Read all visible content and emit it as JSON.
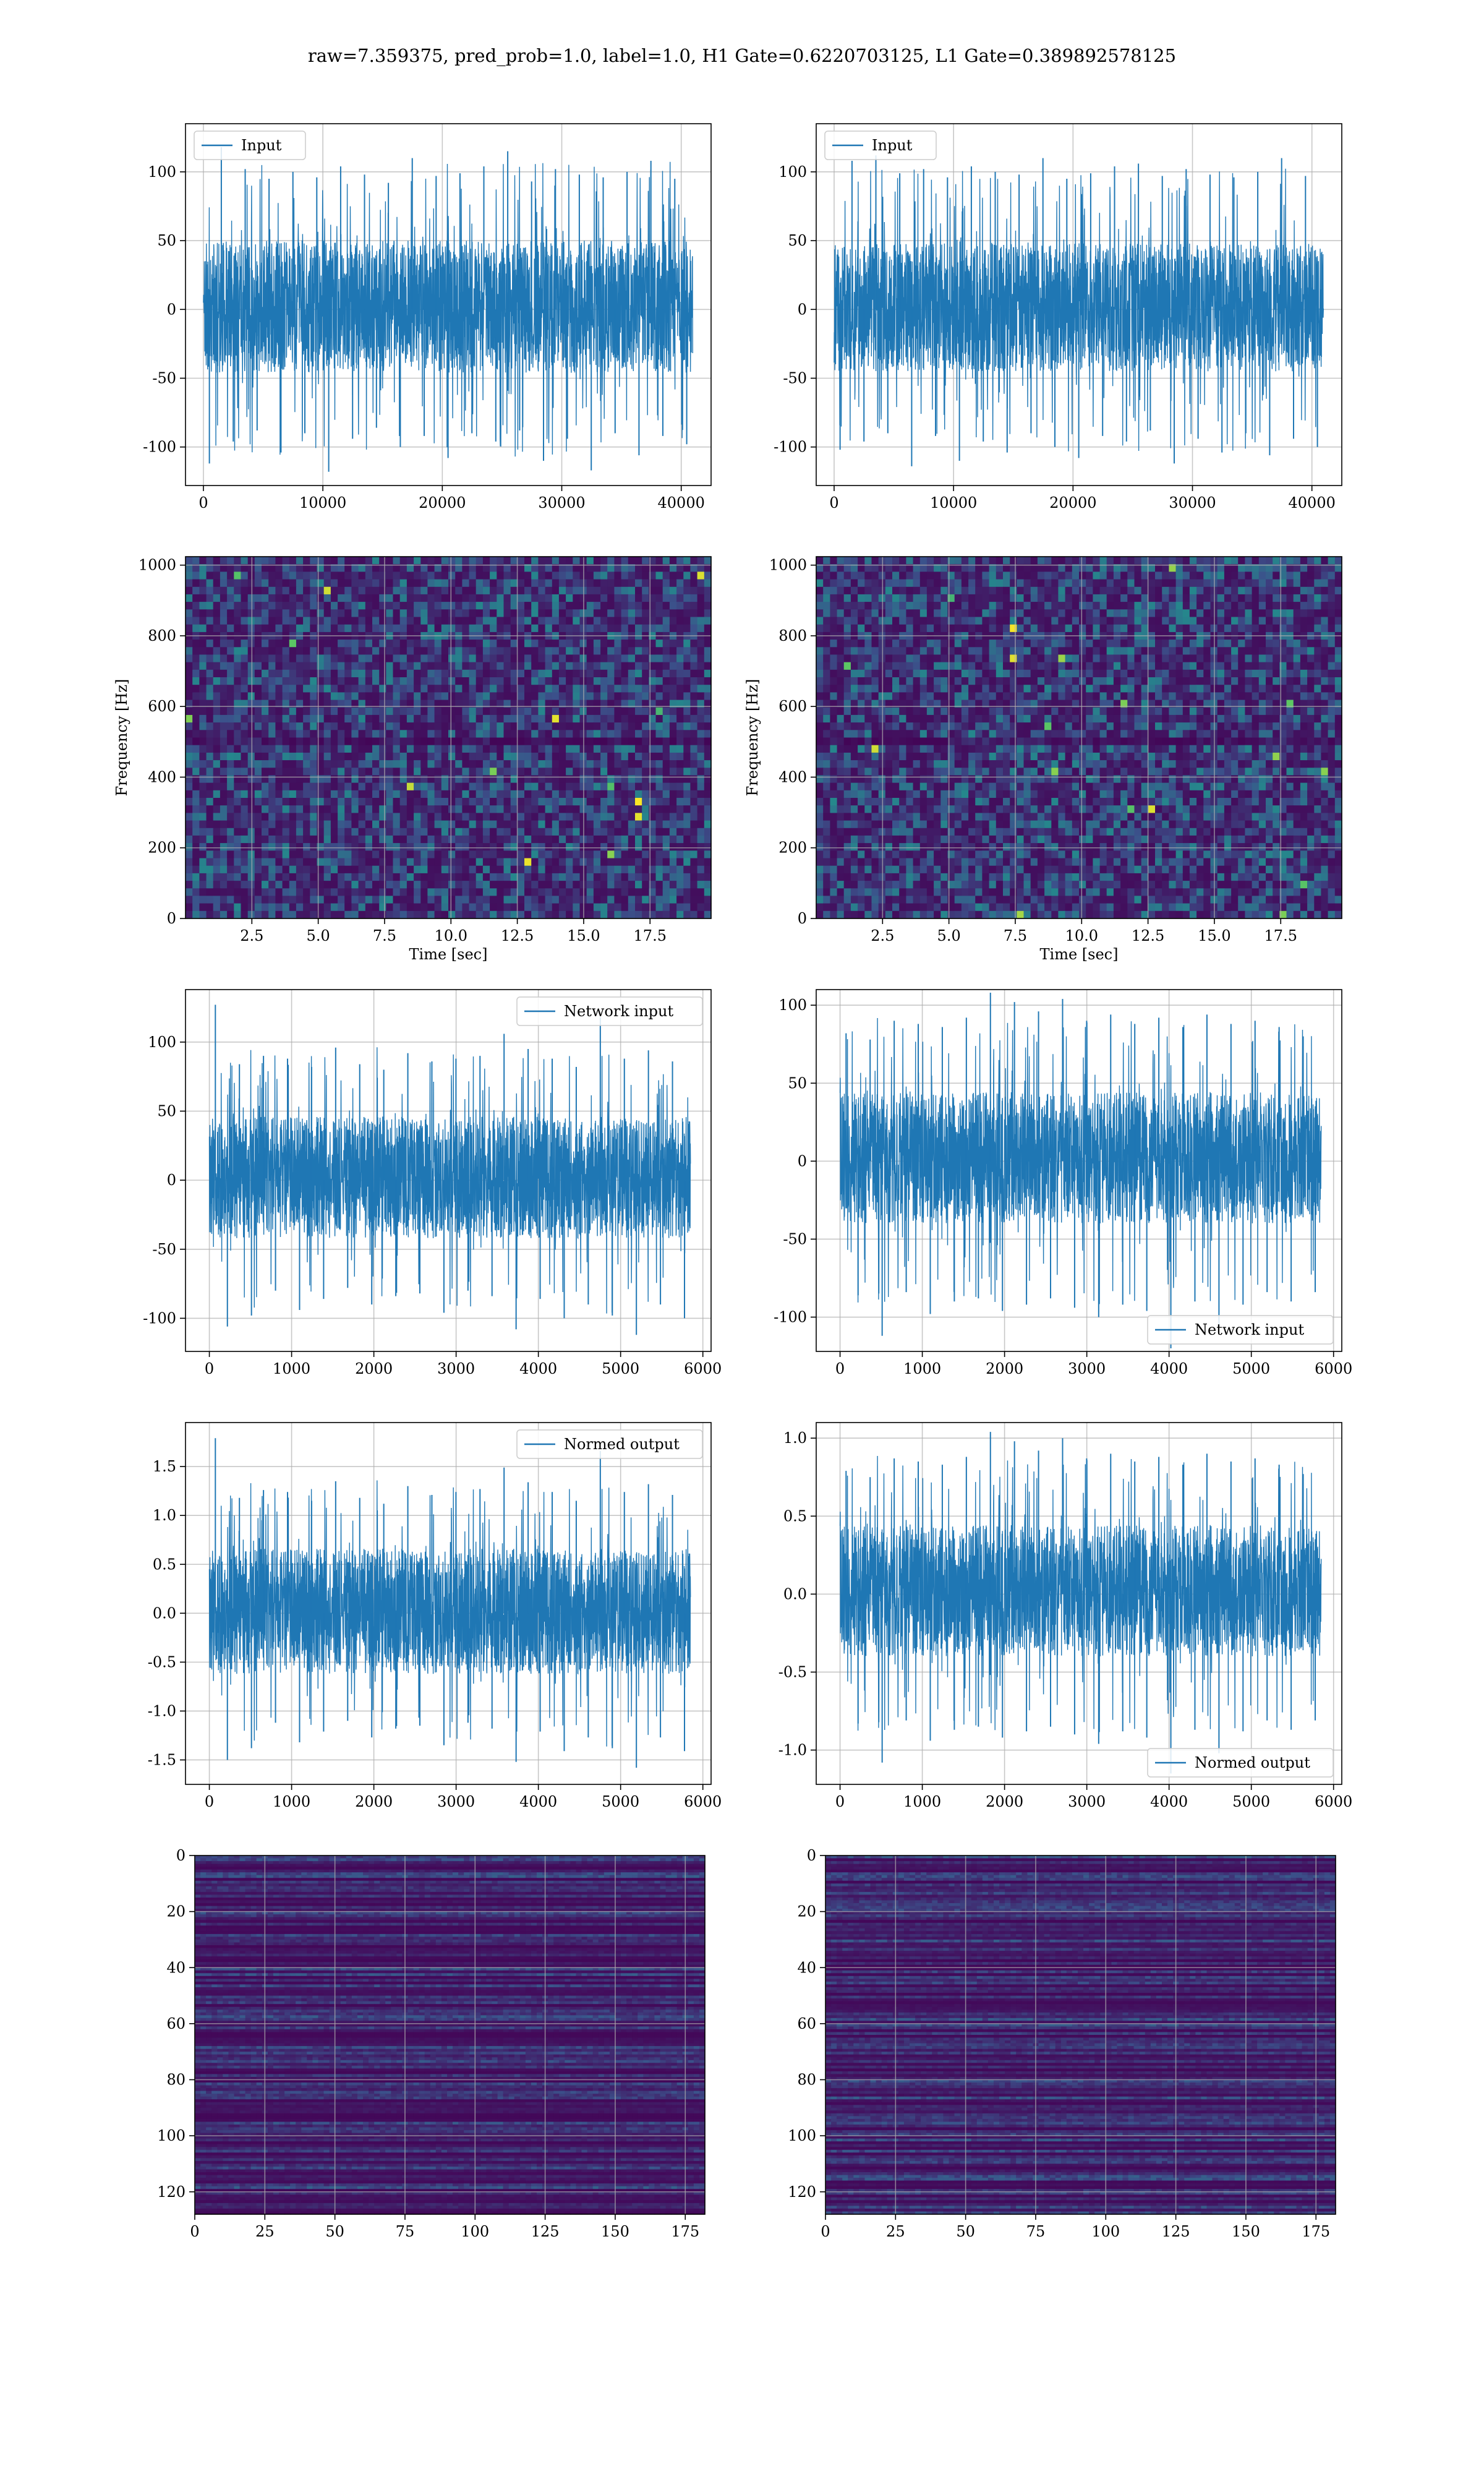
{
  "figure": {
    "title": "raw=7.359375, pred_prob=1.0, label=1.0, H1 Gate=0.6220703125, L1 Gate=0.389892578125"
  },
  "colors": {
    "line": "#1f77b4",
    "grid": "#b0b0b0",
    "background": "#ffffff",
    "viridis": [
      "#440154",
      "#3b528b",
      "#21918c",
      "#5ec962",
      "#fde725"
    ]
  },
  "chart_data": [
    {
      "type": "line",
      "name": "h1-strain",
      "legend": "Input",
      "legend_loc": "upper left",
      "xlim": [
        -1500,
        42500
      ],
      "ylim": [
        -128,
        135
      ],
      "grid": true,
      "x_ticks": [
        0,
        10000,
        20000,
        30000,
        40000
      ],
      "y_ticks": [
        -100,
        -50,
        0,
        50,
        100
      ],
      "x_range": [
        0,
        40960
      ],
      "band": [
        -46,
        50
      ],
      "peak_abs": 122,
      "n_samples": 41,
      "seed": 11,
      "values": [
        -112,
        118,
        -96,
        102,
        -88,
        95,
        -104,
        100,
        -90,
        96,
        -118,
        104,
        -94,
        98,
        -86,
        92,
        -100,
        110,
        -92,
        97,
        -108,
        99,
        -90,
        104,
        -96,
        115,
        -88,
        93,
        -110,
        102,
        -94,
        98,
        -117,
        96,
        -90,
        100,
        -106,
        108,
        -92,
        95,
        -98
      ]
    },
    {
      "type": "line",
      "name": "l1-strain",
      "legend": "Input",
      "legend_loc": "upper left",
      "xlim": [
        -1500,
        42500
      ],
      "ylim": [
        -128,
        135
      ],
      "grid": true,
      "x_ticks": [
        0,
        10000,
        20000,
        30000,
        40000
      ],
      "y_ticks": [
        -100,
        -50,
        0,
        50,
        100
      ],
      "x_range": [
        0,
        40960
      ],
      "band": [
        -45,
        48
      ],
      "peak_abs": 118,
      "n_samples": 41,
      "seed": 23,
      "values": [
        -102,
        108,
        -96,
        112,
        -90,
        99,
        -114,
        102,
        -92,
        96,
        -110,
        104,
        -96,
        100,
        -104,
        98,
        -90,
        110,
        -100,
        95,
        -108,
        99,
        -92,
        104,
        -96,
        106,
        -88,
        97,
        -112,
        102,
        -94,
        98,
        -104,
        96,
        -90,
        100,
        -106,
        110,
        -94,
        97,
        -100
      ]
    },
    {
      "type": "heatmap",
      "name": "h1-spectrogram",
      "xlabel": "Time [sec]",
      "ylabel": "Frequency [Hz]",
      "xlim": [
        0,
        19.8
      ],
      "ylim": [
        0,
        1024
      ],
      "grid": true,
      "x_ticks": [
        2.5,
        5.0,
        7.5,
        10.0,
        12.5,
        15.0,
        17.5
      ],
      "y_ticks": [
        0,
        200,
        400,
        600,
        800,
        1000
      ],
      "colormap": "viridis",
      "rows": 48,
      "cols": 76,
      "seed": 5,
      "dark_rows_hz": [
        500
      ],
      "hot_cells": 14
    },
    {
      "type": "heatmap",
      "name": "l1-spectrogram",
      "xlabel": "Time [sec]",
      "ylabel": "Frequency [Hz]",
      "xlim": [
        0,
        19.8
      ],
      "ylim": [
        0,
        1024
      ],
      "grid": true,
      "x_ticks": [
        2.5,
        5.0,
        7.5,
        10.0,
        12.5,
        15.0,
        17.5
      ],
      "y_ticks": [
        0,
        200,
        400,
        600,
        800,
        1000
      ],
      "colormap": "viridis",
      "rows": 48,
      "cols": 76,
      "seed": 9,
      "dark_rows_hz": [
        500
      ],
      "hot_cells": 18
    },
    {
      "type": "line",
      "name": "h1-network-input",
      "legend": "Network input",
      "legend_loc": "upper right",
      "xlim": [
        -290,
        6100
      ],
      "ylim": [
        -124,
        138
      ],
      "grid": true,
      "x_ticks": [
        0,
        1000,
        2000,
        3000,
        4000,
        5000,
        6000
      ],
      "y_ticks": [
        -100,
        -50,
        0,
        50,
        100
      ],
      "x_range": [
        0,
        5850
      ],
      "band": [
        -42,
        46
      ],
      "peak_abs": 110,
      "n_samples": 40,
      "seed": 31,
      "values": [
        127,
        -106,
        84,
        -98,
        90,
        -80,
        88,
        -94,
        82,
        -86,
        96,
        -78,
        84,
        -90,
        80,
        -84,
        92,
        -82,
        86,
        -96,
        88,
        -80,
        90,
        -84,
        106,
        -108,
        95,
        -86,
        88,
        -100,
        82,
        -90,
        118,
        -98,
        88,
        -112,
        94,
        -90,
        86,
        -100
      ]
    },
    {
      "type": "line",
      "name": "l1-network-input",
      "legend": "Network input",
      "legend_loc": "lower right",
      "xlim": [
        -290,
        6100
      ],
      "ylim": [
        -122,
        110
      ],
      "grid": true,
      "x_ticks": [
        0,
        1000,
        2000,
        3000,
        4000,
        5000,
        6000
      ],
      "y_ticks": [
        -100,
        -50,
        0,
        50,
        100
      ],
      "x_range": [
        0,
        5850
      ],
      "band": [
        -40,
        44
      ],
      "peak_abs": 104,
      "n_samples": 40,
      "seed": 37,
      "values": [
        82,
        -86,
        78,
        -112,
        90,
        -84,
        88,
        -98,
        86,
        -90,
        92,
        -88,
        108,
        -96,
        102,
        -92,
        96,
        -88,
        104,
        -94,
        90,
        -100,
        94,
        -92,
        88,
        -96,
        92,
        -120,
        86,
        -90,
        94,
        -106,
        88,
        -92,
        90,
        -84,
        86,
        -90,
        80,
        -84
      ]
    },
    {
      "type": "line",
      "name": "h1-normed-output",
      "legend": "Normed output",
      "legend_loc": "upper right",
      "xlim": [
        -290,
        6100
      ],
      "ylim": [
        -1.75,
        1.95
      ],
      "grid": true,
      "x_ticks": [
        0,
        1000,
        2000,
        3000,
        4000,
        5000,
        6000
      ],
      "y_ticks": [
        -1.5,
        -1.0,
        -0.5,
        0.0,
        0.5,
        1.0,
        1.5
      ],
      "x_range": [
        0,
        5850
      ],
      "band": [
        -0.62,
        0.66
      ],
      "peak_abs": 1.55,
      "n_samples": 40,
      "seed": 31,
      "values": [
        1.79,
        -1.5,
        1.18,
        -1.38,
        1.26,
        -1.12,
        1.24,
        -1.32,
        1.15,
        -1.21,
        1.35,
        -1.1,
        1.18,
        -1.27,
        1.12,
        -1.18,
        1.3,
        -1.15,
        1.21,
        -1.35,
        1.24,
        -1.12,
        1.27,
        -1.18,
        1.49,
        -1.52,
        1.34,
        -1.21,
        1.24,
        -1.41,
        1.15,
        -1.27,
        1.66,
        -1.38,
        1.24,
        -1.58,
        1.32,
        -1.27,
        1.21,
        -1.41
      ]
    },
    {
      "type": "line",
      "name": "l1-normed-output",
      "legend": "Normed output",
      "legend_loc": "lower right",
      "xlim": [
        -290,
        6100
      ],
      "ylim": [
        -1.22,
        1.1
      ],
      "grid": true,
      "x_ticks": [
        0,
        1000,
        2000,
        3000,
        4000,
        5000,
        6000
      ],
      "y_ticks": [
        -1.0,
        -0.5,
        0.0,
        0.5,
        1.0
      ],
      "x_range": [
        0,
        5850
      ],
      "band": [
        -0.4,
        0.44
      ],
      "peak_abs": 1.0,
      "n_samples": 40,
      "seed": 37,
      "values": [
        0.79,
        -0.83,
        0.75,
        -1.08,
        0.87,
        -0.81,
        0.85,
        -0.94,
        0.83,
        -0.87,
        0.88,
        -0.85,
        1.04,
        -0.92,
        0.98,
        -0.88,
        0.92,
        -0.85,
        1.0,
        -0.9,
        0.87,
        -0.96,
        0.9,
        -0.88,
        0.85,
        -0.92,
        0.88,
        -1.15,
        0.83,
        -0.87,
        0.9,
        -1.02,
        0.85,
        -0.88,
        0.87,
        -0.81,
        0.83,
        -0.87,
        0.77,
        -0.81
      ]
    },
    {
      "type": "heatmap",
      "name": "h1-feature-map",
      "xlim": [
        0,
        182
      ],
      "ylim": [
        128,
        0
      ],
      "grid": true,
      "x_ticks": [
        0,
        25,
        50,
        75,
        100,
        125,
        150,
        175
      ],
      "y_ticks": [
        0,
        20,
        40,
        60,
        80,
        100,
        120
      ],
      "colormap": "viridis",
      "rows": 128,
      "cols": 91,
      "seed": 41,
      "activation_start_col": 140
    },
    {
      "type": "heatmap",
      "name": "l1-feature-map",
      "xlim": [
        0,
        182
      ],
      "ylim": [
        128,
        0
      ],
      "grid": true,
      "x_ticks": [
        0,
        25,
        50,
        75,
        100,
        125,
        150,
        175
      ],
      "y_ticks": [
        0,
        20,
        40,
        60,
        80,
        100,
        120
      ],
      "colormap": "viridis",
      "rows": 128,
      "cols": 91,
      "seed": 43,
      "activation_start_col": 126
    }
  ]
}
